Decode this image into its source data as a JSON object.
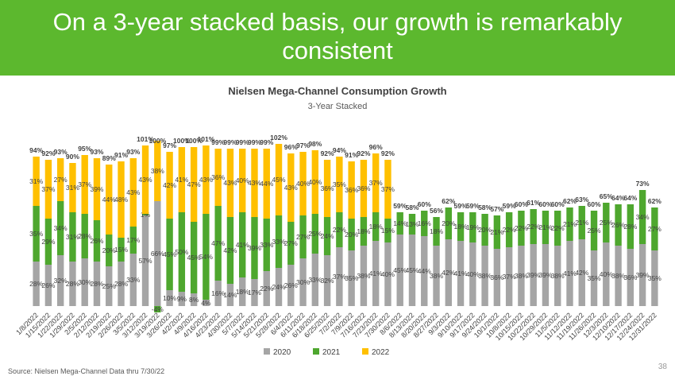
{
  "header": {
    "title": "On a 3-year stacked basis, our growth is remarkably consistent"
  },
  "chart_data": {
    "type": "bar",
    "stacked": true,
    "title": "Nielsen Mega-Channel Consumption Growth",
    "subtitle": "3-Year Stacked",
    "categories": [
      "1/8/2022",
      "1/15/2022",
      "1/22/2022",
      "1/29/2022",
      "2/5/2022",
      "2/12/2022",
      "2/19/2022",
      "2/26/2022",
      "3/5/2022",
      "3/12/2022",
      "3/19/2022",
      "3/26/2022",
      "4/2/2022",
      "4/9/2022",
      "4/16/2022",
      "4/23/2022",
      "4/30/2022",
      "5/7/2022",
      "5/14/2022",
      "5/21/2022",
      "5/28/2022",
      "6/4/2022",
      "6/11/2022",
      "6/18/2022",
      "6/25/2022",
      "7/2/2022",
      "7/9/2022",
      "7/16/2022",
      "7/23/2022",
      "7/30/2022",
      "8/6/2022",
      "8/13/2022",
      "8/20/2022",
      "8/27/2022",
      "9/3/2022",
      "9/10/2022",
      "9/17/2022",
      "9/24/2022",
      "10/1/2022",
      "10/8/2022",
      "10/15/2022",
      "10/22/2022",
      "10/29/2022",
      "11/5/2022",
      "11/12/2022",
      "11/19/2022",
      "11/26/2022",
      "12/3/2022",
      "12/10/2022",
      "12/17/2022",
      "12/24/2022",
      "12/31/2022"
    ],
    "series": [
      {
        "name": "2020",
        "color": "#a5a5a5",
        "values": [
          28,
          26,
          32,
          28,
          30,
          28,
          25,
          28,
          33,
          57,
          66,
          10,
          9,
          8,
          4,
          16,
          14,
          18,
          17,
          22,
          24,
          26,
          30,
          33,
          32,
          37,
          35,
          38,
          41,
          40,
          45,
          45,
          44,
          38,
          42,
          41,
          40,
          38,
          36,
          37,
          38,
          39,
          39,
          38,
          41,
          42,
          35,
          40,
          38,
          36,
          39,
          35
        ],
        "value_labels": [
          "28%",
          "26%",
          "32%",
          "28%",
          "30%",
          "28%",
          "25%",
          "28%",
          "33%",
          "57%",
          "66%",
          "10%",
          "9%",
          "8%",
          "4%",
          "16%",
          "14%",
          "18%",
          "17%",
          "22%",
          "24%",
          "26%",
          "30%",
          "33%",
          "32%",
          "37%",
          "35%",
          "38%",
          "41%",
          "40%",
          "45%",
          "45%",
          "44%",
          "38%",
          "42%",
          "41%",
          "40%",
          "38%",
          "36%",
          "37%",
          "38%",
          "39%",
          "39%",
          "38%",
          "41%",
          "42%",
          "35%",
          "40%",
          "38%",
          "36%",
          "39%",
          "35%"
        ]
      },
      {
        "name": "2021",
        "color": "#4ea72e",
        "values": [
          35,
          29,
          34,
          31,
          28,
          26,
          20,
          15,
          17,
          1,
          -4,
          45,
          50,
          45,
          54,
          47,
          42,
          41,
          39,
          33,
          33,
          27,
          27,
          25,
          24,
          22,
          20,
          18,
          18,
          15,
          14,
          13,
          16,
          18,
          20,
          18,
          19,
          20,
          21,
          22,
          22,
          22,
          21,
          22,
          21,
          21,
          25,
          25,
          26,
          28,
          34,
          27
        ],
        "value_labels": [
          "35%",
          "29%",
          "34%",
          "31%",
          "28%",
          "26%",
          "20%",
          "15%",
          "17%",
          "1%",
          "-4%",
          "45%",
          "50%",
          "45%",
          "54%",
          "47%",
          "42%",
          "41%",
          "39%",
          "33%",
          "33%",
          "27%",
          "27%",
          "25%",
          "24%",
          "22%",
          "20%",
          "18%",
          "18%",
          "15%",
          "14%",
          "13%",
          "16%",
          "18%",
          "20%",
          "18%",
          "19%",
          "20%",
          "21%",
          "22%",
          "22%",
          "22%",
          "21%",
          "22%",
          "21%",
          "21%",
          "25%",
          "25%",
          "26%",
          "28%",
          "34%",
          "27%"
        ]
      },
      {
        "name": "2022",
        "color": "#ffc000",
        "values": [
          31,
          37,
          27,
          31,
          37,
          39,
          44,
          48,
          43,
          43,
          38,
          42,
          41,
          47,
          43,
          36,
          43,
          40,
          43,
          44,
          45,
          43,
          40,
          40,
          36,
          35,
          36,
          36,
          37,
          37,
          null,
          null,
          null,
          null,
          null,
          null,
          null,
          null,
          null,
          null,
          null,
          null,
          null,
          null,
          null,
          null,
          null,
          null,
          null,
          null,
          null,
          null
        ],
        "value_labels": [
          "31%",
          "37%",
          "27%",
          "31%",
          "37%",
          "39%",
          "44%",
          "48%",
          "43%",
          "43%",
          "38%",
          "42%",
          "41%",
          "47%",
          "43%",
          "36%",
          "43%",
          "40%",
          "43%",
          "44%",
          "45%",
          "43%",
          "40%",
          "40%",
          "36%",
          "35%",
          "36%",
          "36%",
          "37%",
          "37%",
          null,
          null,
          null,
          null,
          null,
          null,
          null,
          null,
          null,
          null,
          null,
          null,
          null,
          null,
          null,
          null,
          null,
          null,
          null,
          null,
          null,
          null
        ]
      }
    ],
    "totals": [
      94,
      92,
      93,
      90,
      95,
      93,
      89,
      91,
      93,
      101,
      100,
      97,
      100,
      100,
      101,
      99,
      99,
      99,
      99,
      99,
      102,
      96,
      97,
      98,
      92,
      94,
      91,
      92,
      96,
      92,
      59,
      58,
      60,
      56,
      62,
      59,
      59,
      58,
      57,
      59,
      60,
      61,
      60,
      60,
      62,
      63,
      60,
      65,
      64,
      64,
      73,
      62
    ],
    "total_labels": [
      "94%",
      "92%",
      "93%",
      "90%",
      "95%",
      "93%",
      "89%",
      "91%",
      "93%",
      "101%",
      "100%",
      "97%",
      "100%",
      "100%",
      "101%",
      "99%",
      "99%",
      "99%",
      "99%",
      "99%",
      "102%",
      "96%",
      "97%",
      "98%",
      "92%",
      "94%",
      "91%",
      "92%",
      "96%",
      "92%",
      "59%",
      "58%",
      "60%",
      "56%",
      "62%",
      "59%",
      "59%",
      "58%",
      "57%",
      "59%",
      "60%",
      "61%",
      "60%",
      "60%",
      "62%",
      "63%",
      "60%",
      "65%",
      "64%",
      "64%",
      "73%",
      "62%"
    ]
  },
  "footer": {
    "source": "Source:  Nielsen Mega-Channel Data thru 7/30/22",
    "page": 38
  }
}
